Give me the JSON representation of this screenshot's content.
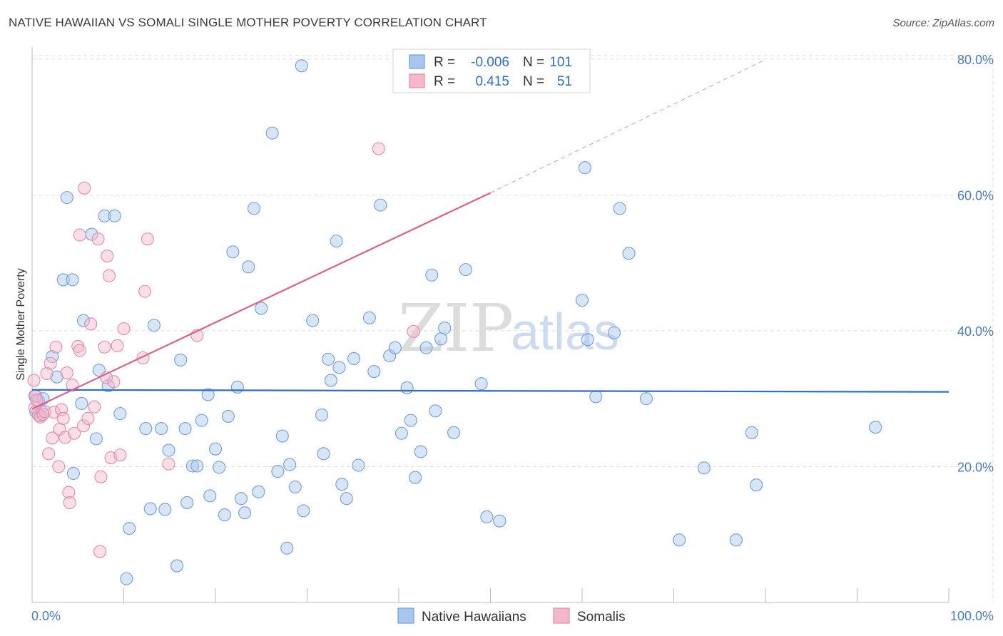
{
  "title": "NATIVE HAWAIIAN VS SOMALI SINGLE MOTHER POVERTY CORRELATION CHART",
  "source": "Source: ZipAtlas.com",
  "watermark": {
    "zip": "ZIP",
    "atlas": "atlas"
  },
  "colors": {
    "blue_fill": "#a9c6ee",
    "blue_stroke": "#6f9fdc",
    "blue_line": "#2f6ec8",
    "pink_fill": "#f5b8cb",
    "pink_stroke": "#e889a6",
    "pink_line": "#e0608c",
    "grid": "#dddddd",
    "axis_text": "#4a7cc4"
  },
  "legend": {
    "rows": [
      {
        "r_label": "R =",
        "r_value": "-0.006",
        "n_label": "N =",
        "n_value": "101"
      },
      {
        "r_label": "R =",
        "r_value": "0.415",
        "n_label": "N =",
        "n_value": "51"
      }
    ]
  },
  "chart_data": {
    "type": "scatter",
    "title": "NATIVE HAWAIIAN VS SOMALI SINGLE MOTHER POVERTY CORRELATION CHART",
    "xlabel": "",
    "ylabel": "Single Mother Poverty",
    "xlim": [
      0,
      100
    ],
    "ylim": [
      0,
      80
    ],
    "x_tick_labels": [
      "0.0%",
      "100.0%"
    ],
    "y_ticks": [
      20,
      40,
      60,
      80
    ],
    "y_tick_labels": [
      "20.0%",
      "40.0%",
      "60.0%",
      "80.0%"
    ],
    "grid": true,
    "series": [
      {
        "name": "Native Hawaiians",
        "color": "#6f9fdc",
        "r": -0.006,
        "n": 101,
        "trend": {
          "x0": 0,
          "y0": 31.3,
          "x1": 100,
          "y1": 31.0
        },
        "points": [
          [
            0.3,
            30.4
          ],
          [
            0.4,
            28.1
          ],
          [
            0.7,
            29.7
          ],
          [
            0.9,
            27.5
          ],
          [
            1.1,
            28.0
          ],
          [
            1.2,
            30.0
          ],
          [
            2.2,
            36.2
          ],
          [
            2.7,
            33.2
          ],
          [
            3.8,
            59.6
          ],
          [
            3.4,
            47.5
          ],
          [
            4.4,
            47.5
          ],
          [
            4.5,
            19.0
          ],
          [
            5.4,
            29.3
          ],
          [
            5.6,
            41.5
          ],
          [
            6.5,
            54.2
          ],
          [
            7.0,
            24.1
          ],
          [
            7.3,
            34.2
          ],
          [
            7.9,
            56.9
          ],
          [
            8.3,
            31.9
          ],
          [
            9.0,
            56.9
          ],
          [
            9.6,
            27.8
          ],
          [
            10.3,
            3.5
          ],
          [
            10.6,
            10.9
          ],
          [
            12.4,
            25.6
          ],
          [
            12.9,
            13.8
          ],
          [
            13.3,
            40.8
          ],
          [
            14.1,
            25.6
          ],
          [
            14.5,
            13.7
          ],
          [
            14.9,
            22.4
          ],
          [
            15.8,
            5.4
          ],
          [
            16.2,
            35.7
          ],
          [
            16.7,
            25.6
          ],
          [
            16.9,
            14.7
          ],
          [
            17.5,
            20.1
          ],
          [
            18.0,
            20.1
          ],
          [
            18.5,
            26.8
          ],
          [
            19.2,
            30.6
          ],
          [
            19.4,
            15.7
          ],
          [
            20.0,
            22.6
          ],
          [
            20.4,
            19.9
          ],
          [
            21.0,
            12.9
          ],
          [
            21.4,
            27.4
          ],
          [
            21.9,
            51.6
          ],
          [
            22.4,
            31.7
          ],
          [
            22.8,
            15.3
          ],
          [
            23.2,
            13.2
          ],
          [
            23.6,
            49.4
          ],
          [
            24.2,
            58.0
          ],
          [
            24.7,
            16.3
          ],
          [
            25.0,
            43.3
          ],
          [
            26.2,
            69.1
          ],
          [
            26.8,
            19.3
          ],
          [
            27.3,
            24.5
          ],
          [
            27.8,
            8.0
          ],
          [
            28.1,
            20.3
          ],
          [
            28.7,
            17.0
          ],
          [
            29.4,
            79.0
          ],
          [
            29.6,
            13.5
          ],
          [
            30.6,
            41.5
          ],
          [
            31.6,
            27.6
          ],
          [
            31.8,
            21.9
          ],
          [
            32.3,
            35.8
          ],
          [
            32.6,
            32.7
          ],
          [
            33.5,
            34.6
          ],
          [
            33.2,
            53.2
          ],
          [
            33.8,
            17.4
          ],
          [
            34.3,
            15.3
          ],
          [
            35.1,
            35.9
          ],
          [
            35.6,
            20.2
          ],
          [
            36.8,
            41.9
          ],
          [
            37.3,
            34.0
          ],
          [
            38.0,
            58.5
          ],
          [
            39.0,
            36.3
          ],
          [
            39.6,
            37.5
          ],
          [
            40.3,
            24.9
          ],
          [
            40.9,
            31.6
          ],
          [
            41.3,
            26.8
          ],
          [
            41.8,
            18.4
          ],
          [
            42.4,
            22.2
          ],
          [
            43.0,
            37.5
          ],
          [
            43.6,
            48.2
          ],
          [
            44.0,
            28.2
          ],
          [
            44.6,
            38.8
          ],
          [
            45.0,
            40.4
          ],
          [
            46.0,
            25.0
          ],
          [
            47.3,
            49.0
          ],
          [
            49.0,
            32.2
          ],
          [
            49.6,
            12.6
          ],
          [
            51.0,
            12.0
          ],
          [
            60.0,
            44.5
          ],
          [
            60.3,
            64.0
          ],
          [
            60.6,
            38.7
          ],
          [
            61.5,
            30.3
          ],
          [
            63.5,
            39.7
          ],
          [
            64.1,
            58.0
          ],
          [
            65.1,
            51.4
          ],
          [
            67.0,
            30.0
          ],
          [
            70.6,
            9.2
          ],
          [
            73.3,
            19.8
          ],
          [
            76.8,
            9.2
          ],
          [
            78.5,
            25.0
          ],
          [
            79.0,
            17.3
          ],
          [
            92.0,
            25.8
          ]
        ]
      },
      {
        "name": "Somalis",
        "color": "#e889a6",
        "r": 0.415,
        "n": 51,
        "trend": {
          "x0": 0,
          "y0": 28.5,
          "x1": 50,
          "y1": 60.3
        },
        "trend_dashed": {
          "x0": 50,
          "y0": 60.3,
          "x1": 80,
          "y1": 79.9
        },
        "points": [
          [
            0.2,
            32.7
          ],
          [
            0.3,
            28.7
          ],
          [
            0.4,
            30.4
          ],
          [
            0.5,
            29.8
          ],
          [
            0.7,
            27.6
          ],
          [
            0.9,
            27.3
          ],
          [
            1.2,
            27.7
          ],
          [
            1.4,
            28.1
          ],
          [
            1.6,
            33.7
          ],
          [
            1.8,
            21.9
          ],
          [
            2.0,
            35.2
          ],
          [
            2.2,
            24.2
          ],
          [
            2.4,
            28.0
          ],
          [
            2.6,
            37.6
          ],
          [
            2.9,
            20.0
          ],
          [
            3.0,
            25.5
          ],
          [
            3.2,
            28.4
          ],
          [
            3.4,
            27.1
          ],
          [
            3.6,
            24.3
          ],
          [
            3.8,
            33.8
          ],
          [
            4.0,
            16.2
          ],
          [
            4.1,
            14.7
          ],
          [
            4.4,
            32.0
          ],
          [
            4.6,
            24.9
          ],
          [
            5.0,
            37.7
          ],
          [
            5.2,
            37.1
          ],
          [
            5.6,
            26.0
          ],
          [
            5.2,
            54.1
          ],
          [
            5.7,
            61.0
          ],
          [
            6.1,
            27.1
          ],
          [
            6.4,
            41.0
          ],
          [
            6.8,
            28.8
          ],
          [
            7.2,
            53.5
          ],
          [
            7.5,
            18.5
          ],
          [
            7.4,
            7.5
          ],
          [
            7.9,
            37.6
          ],
          [
            8.1,
            33.1
          ],
          [
            8.2,
            51.0
          ],
          [
            8.4,
            48.1
          ],
          [
            8.6,
            21.3
          ],
          [
            8.9,
            32.5
          ],
          [
            9.3,
            37.8
          ],
          [
            9.6,
            21.7
          ],
          [
            10.0,
            40.3
          ],
          [
            12.1,
            36.0
          ],
          [
            12.3,
            45.8
          ],
          [
            12.6,
            53.5
          ],
          [
            14.9,
            20.4
          ],
          [
            18.0,
            39.3
          ],
          [
            37.8,
            66.8
          ],
          [
            41.6,
            39.9
          ]
        ]
      }
    ]
  }
}
